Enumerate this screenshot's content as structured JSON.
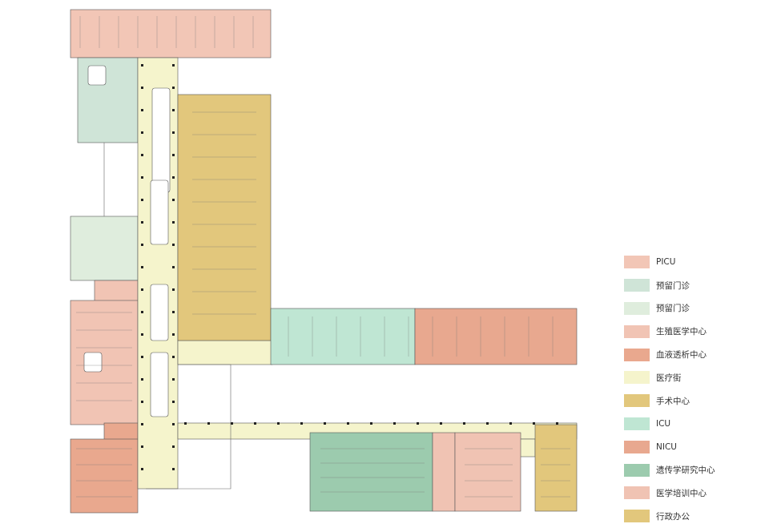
{
  "legend": [
    {
      "label": "PICU",
      "color": "#f2c6b6"
    },
    {
      "label": "预留门诊",
      "color": "#cfe4d7"
    },
    {
      "label": "预留门诊",
      "color": "#dfeddd"
    },
    {
      "label": "生殖医学中心",
      "color": "#f1c4b4"
    },
    {
      "label": "血液透析中心",
      "color": "#e9a88e"
    },
    {
      "label": "医疗街",
      "color": "#f5f4cc"
    },
    {
      "label": "手术中心",
      "color": "#e2c77c"
    },
    {
      "label": "ICU",
      "color": "#bfe6d3"
    },
    {
      "label": "NICU",
      "color": "#e8a88f"
    },
    {
      "label": "遗传学研究中心",
      "color": "#9ccbae"
    },
    {
      "label": "医学培训中心",
      "color": "#f0c3b3"
    },
    {
      "label": "行政办公",
      "color": "#e2c77c"
    }
  ]
}
